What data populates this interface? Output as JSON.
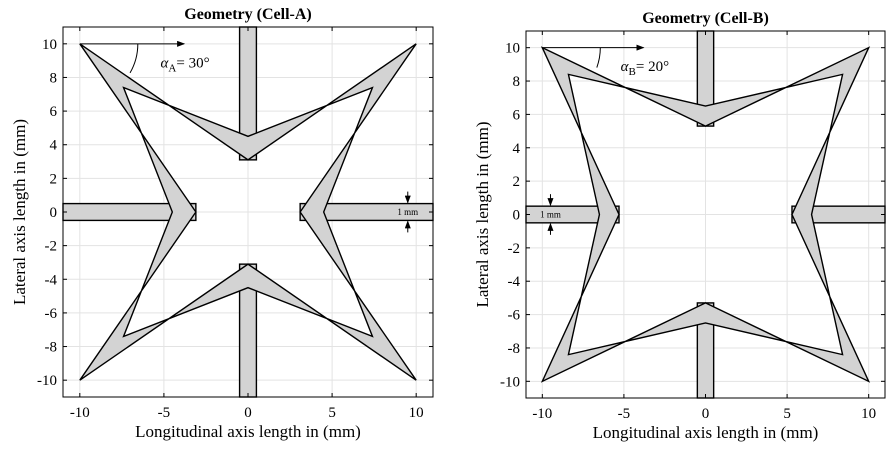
{
  "panels": [
    {
      "id": "cell-a",
      "title": "Geometry (Cell-A)",
      "xlabel": "Longitudinal axis length in (mm)",
      "ylabel": "Lateral axis length in (mm)",
      "xlim": [
        -11,
        11
      ],
      "ylim": [
        -11,
        11
      ],
      "x_ticks": [
        "-10",
        "-5",
        "0",
        "5",
        "10"
      ],
      "y_ticks": [
        "-10",
        "-8",
        "-6",
        "-4",
        "-2",
        "0",
        "2",
        "4",
        "6",
        "8",
        "10"
      ],
      "angle_symbol": "α",
      "angle_subscript": "A",
      "angle_value": "= 30°",
      "angle_deg": 30,
      "inner_vertex_outer_mm": 3.1,
      "inner_vertex_inner_mm": 4.5,
      "corner_inset_mm": 7.4,
      "rib_halfwidth_mm": 0.5,
      "thickness_label": "1 mm",
      "thickness_label_side": "right"
    },
    {
      "id": "cell-b",
      "title": "Geometry (Cell-B)",
      "xlabel": "Longitudinal axis length in (mm)",
      "ylabel": "Lateral axis length in (mm)",
      "xlim": [
        -11,
        11
      ],
      "ylim": [
        -11,
        11
      ],
      "x_ticks": [
        "-10",
        "-5",
        "0",
        "5",
        "10"
      ],
      "y_ticks": [
        "-10",
        "-8",
        "-6",
        "-4",
        "-2",
        "0",
        "2",
        "4",
        "6",
        "8",
        "10"
      ],
      "angle_symbol": "α",
      "angle_subscript": "B",
      "angle_value": "= 20°",
      "angle_deg": 20,
      "inner_vertex_outer_mm": 5.3,
      "inner_vertex_inner_mm": 6.5,
      "corner_inset_mm": 8.4,
      "rib_halfwidth_mm": 0.5,
      "thickness_label": "1 mm",
      "thickness_label_side": "left"
    }
  ]
}
